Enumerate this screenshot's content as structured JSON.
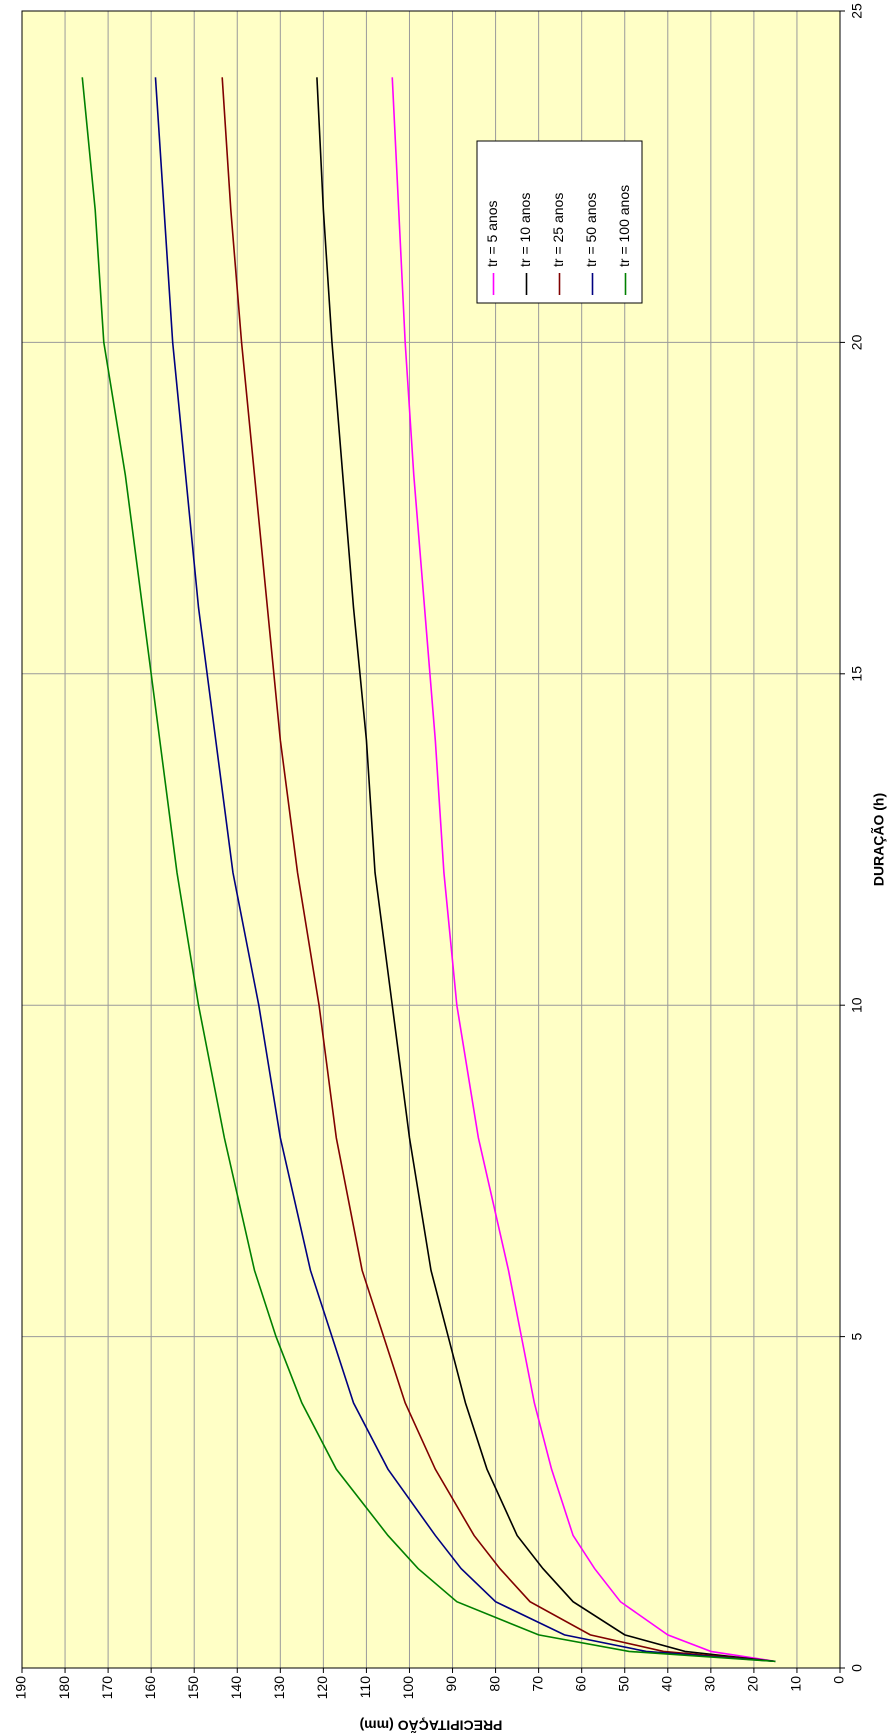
{
  "chart_data": {
    "type": "line",
    "xlabel": "DURAÇÃO (h)",
    "ylabel": "PRECIPITAÇÃO (mm)",
    "x": [
      0.1,
      0.25,
      0.5,
      1,
      1.5,
      2,
      3,
      4,
      5,
      6,
      8,
      10,
      12,
      14,
      16,
      18,
      20,
      22,
      24
    ],
    "series": [
      {
        "name": "tr = 5 anos",
        "color": "#ff00ff",
        "values": [
          15,
          30,
          40,
          51,
          57,
          62,
          67,
          71,
          74,
          77,
          84,
          89,
          92,
          94,
          96.5,
          99,
          101,
          102.5,
          104
        ]
      },
      {
        "name": "tr = 10 anos",
        "color": "#000000",
        "values": [
          15,
          36,
          50,
          62,
          69,
          75,
          82,
          87,
          91,
          95,
          100,
          104,
          108,
          110,
          113,
          115.5,
          118,
          120,
          121.5
        ]
      },
      {
        "name": "tr = 25 anos",
        "color": "#800000",
        "values": [
          15,
          41,
          58,
          72,
          79,
          85,
          94,
          101,
          106,
          111,
          117,
          121,
          126,
          130,
          133,
          136,
          139,
          141.5,
          143.5
        ]
      },
      {
        "name": "tr = 50 anos",
        "color": "#000080",
        "values": [
          15,
          45,
          64,
          80,
          88,
          94,
          105,
          113,
          118,
          123,
          130,
          135,
          141,
          145,
          149,
          152,
          155,
          157,
          159
        ]
      },
      {
        "name": "tr = 100 anos",
        "color": "#008000",
        "values": [
          15,
          49,
          70,
          89,
          98,
          105,
          117,
          125,
          131,
          136,
          143,
          149,
          154,
          158,
          162,
          166,
          171,
          173,
          176
        ]
      }
    ],
    "xlim": [
      0,
      25
    ],
    "xticks": [
      0,
      5,
      10,
      15,
      20,
      25
    ],
    "ylim": [
      0,
      190
    ],
    "yticks": [
      0,
      10,
      20,
      30,
      40,
      50,
      60,
      70,
      80,
      90,
      100,
      110,
      120,
      130,
      140,
      150,
      160,
      170,
      180,
      190
    ],
    "grid": true,
    "background": "#ffffc6"
  }
}
